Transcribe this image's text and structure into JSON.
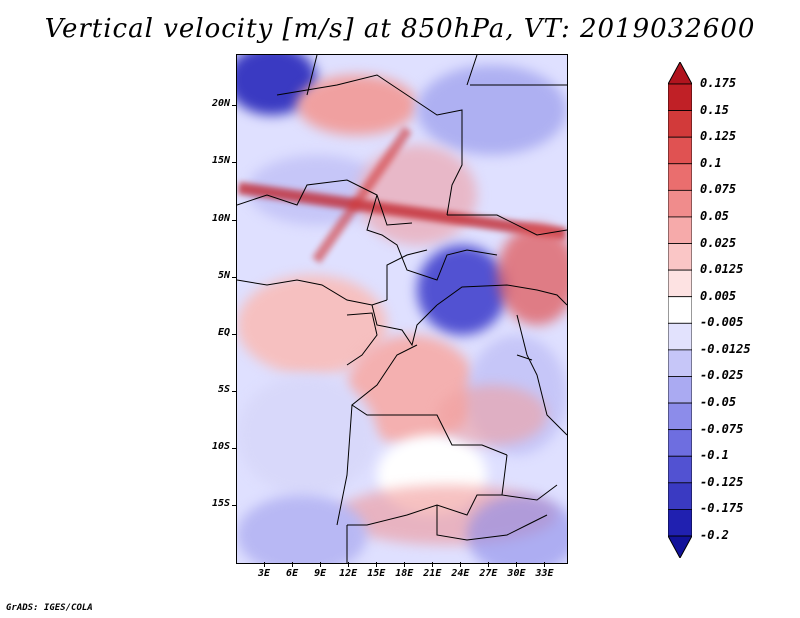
{
  "title": "Vertical velocity [m/s] at 850hPa, VT: 2019032600",
  "footer": "GrADS: IGES/COLA",
  "map": {
    "lat_ticks": [
      {
        "lat": 20,
        "label": "20N"
      },
      {
        "lat": 15,
        "label": "15N"
      },
      {
        "lat": 10,
        "label": "10N"
      },
      {
        "lat": 5,
        "label": "5N"
      },
      {
        "lat": 0,
        "label": "EQ"
      },
      {
        "lat": -5,
        "label": "5S"
      },
      {
        "lat": -10,
        "label": "10S"
      },
      {
        "lat": -15,
        "label": "15S"
      }
    ],
    "lon_ticks": [
      {
        "lon": 3,
        "label": "3E"
      },
      {
        "lon": 6,
        "label": "6E"
      },
      {
        "lon": 9,
        "label": "9E"
      },
      {
        "lon": 12,
        "label": "12E"
      },
      {
        "lon": 15,
        "label": "15E"
      },
      {
        "lon": 18,
        "label": "18E"
      },
      {
        "lon": 21,
        "label": "21E"
      },
      {
        "lon": 24,
        "label": "24E"
      },
      {
        "lon": 27,
        "label": "27E"
      },
      {
        "lon": 30,
        "label": "30E"
      },
      {
        "lon": 33,
        "label": "33E"
      }
    ]
  },
  "colorbar": {
    "levels": [
      {
        "label": "0.175",
        "color": "#b0141e"
      },
      {
        "label": "0.15",
        "color": "#c02026"
      },
      {
        "label": "0.125",
        "color": "#d23a3a"
      },
      {
        "label": "0.1",
        "color": "#e05252"
      },
      {
        "label": "0.075",
        "color": "#ea6e6e"
      },
      {
        "label": "0.05",
        "color": "#f08c8c"
      },
      {
        "label": "0.025",
        "color": "#f6aaaa"
      },
      {
        "label": "0.0125",
        "color": "#fac6c6"
      },
      {
        "label": "0.005",
        "color": "#fde2e2"
      },
      {
        "label": "-0.005",
        "color": "#ffffff"
      },
      {
        "label": "-0.0125",
        "color": "#e2e2fd"
      },
      {
        "label": "-0.025",
        "color": "#c6c6f8"
      },
      {
        "label": "-0.05",
        "color": "#aaaaf2"
      },
      {
        "label": "-0.075",
        "color": "#8c8cea"
      },
      {
        "label": "-0.1",
        "color": "#6e6ee0"
      },
      {
        "label": "-0.125",
        "color": "#5252d2"
      },
      {
        "label": "-0.175",
        "color": "#3a3ac2"
      },
      {
        "label": "-0.2",
        "color": "#2020b0"
      }
    ],
    "bottom_color": "#12129a"
  }
}
